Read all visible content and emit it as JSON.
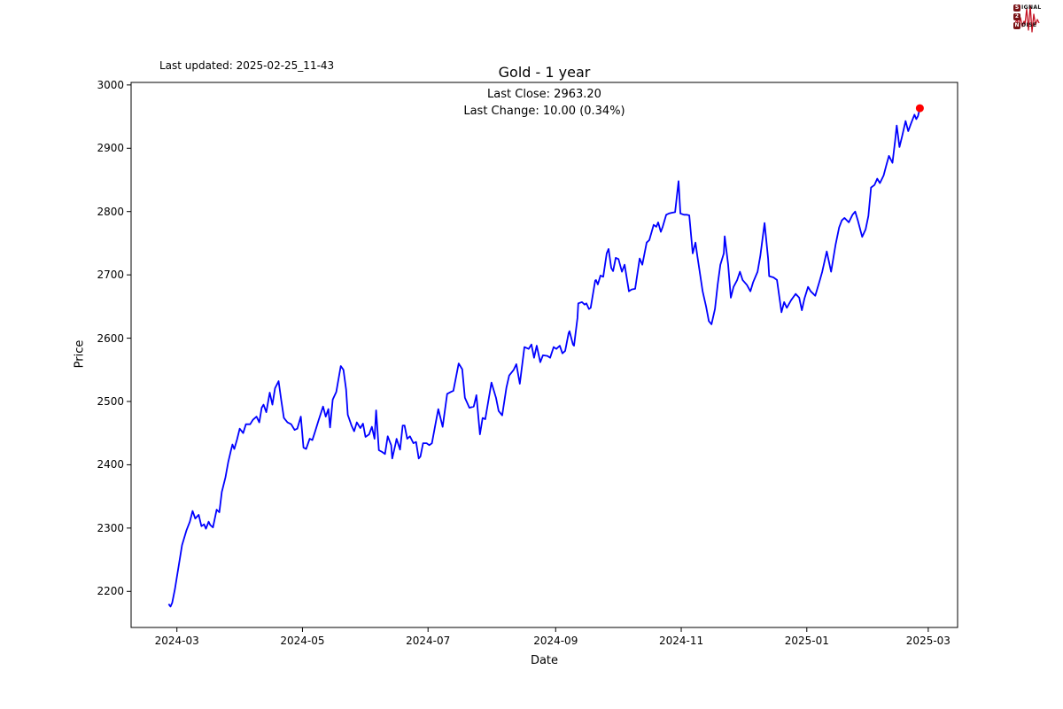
{
  "header": {
    "last_updated": "Last updated: 2025-02-25_11-43",
    "title": "Gold - 1 year",
    "subtitle_line1": "Last Close: 2963.20",
    "subtitle_line2": "Last Change: 10.00 (0.34%)"
  },
  "logo": {
    "wave_color": "#c41425",
    "badge_color": "#7a1417",
    "rows": [
      {
        "badge": "S",
        "rest": "IGNAL"
      },
      {
        "badge": "2",
        "rest": ""
      },
      {
        "badge": "N",
        "rest": "OISE"
      }
    ]
  },
  "chart_data": {
    "type": "line",
    "title": "Gold - 1 year",
    "xlabel": "Date",
    "ylabel": "Price",
    "legend": null,
    "grid": false,
    "line_color": "#0000ff",
    "last_point_color": "#ff0000",
    "axis_color": "#000000",
    "last_close": 2963.2,
    "last_change": "10.00 (0.34%)",
    "x_unit": "days since 2024-02-26",
    "x_start_date": "2024-02-26",
    "x_end_date": "2025-02-25",
    "xlim_days": [
      -18.25,
      383.25
    ],
    "ylim": [
      2143,
      3004
    ],
    "y_ticks": [
      2200,
      2300,
      2400,
      2500,
      2600,
      2700,
      2800,
      2900,
      3000
    ],
    "x_ticks": [
      {
        "day": 4,
        "label": "2024-03"
      },
      {
        "day": 65,
        "label": "2024-05"
      },
      {
        "day": 126,
        "label": "2024-07"
      },
      {
        "day": 188,
        "label": "2024-09"
      },
      {
        "day": 249,
        "label": "2024-11"
      },
      {
        "day": 310,
        "label": "2025-01"
      },
      {
        "day": 369,
        "label": "2025-03"
      }
    ],
    "x_days": [
      0,
      0.9,
      1.7,
      3.0,
      4.3,
      5.2,
      6.5,
      8.6,
      10.3,
      11.6,
      12.9,
      14.6,
      15.9,
      17.2,
      18.1,
      19.4,
      20.2,
      21.5,
      23.3,
      24.6,
      25.8,
      27.6,
      28.9,
      30.2,
      31.0,
      31.9,
      33.2,
      34.5,
      36.2,
      37.5,
      39.6,
      40.9,
      42.7,
      44.0,
      45.2,
      46.1,
      47.4,
      49.1,
      50.4,
      51.7,
      53.4,
      54.7,
      56.0,
      57.7,
      59.5,
      61.2,
      62.5,
      64.2,
      65.5,
      66.8,
      68.5,
      69.8,
      71.1,
      72.8,
      75.0,
      76.3,
      77.6,
      78.4,
      79.7,
      81.4,
      83.6,
      84.9,
      86.2,
      87.0,
      88.8,
      90.1,
      91.4,
      93.1,
      94.4,
      95.6,
      97.4,
      98.7,
      100.0,
      100.8,
      102.1,
      103.8,
      105.1,
      106.4,
      108.1,
      108.6,
      110.3,
      110.7,
      112.4,
      113.7,
      114.6,
      115.9,
      117.2,
      118.9,
      120.2,
      121.5,
      122.3,
      123.6,
      125.3,
      126.6,
      127.9,
      129.7,
      131.0,
      133.1,
      135.3,
      137.0,
      138.3,
      140.9,
      142.6,
      143.9,
      146.1,
      148.2,
      149.5,
      151.2,
      152.5,
      153.8,
      156.8,
      159.0,
      160.3,
      162.0,
      164.1,
      165.4,
      167.6,
      168.9,
      170.6,
      172.8,
      174.9,
      176.2,
      177.5,
      178.8,
      180.5,
      181.8,
      184.0,
      185.3,
      187.0,
      188.3,
      190.0,
      191.3,
      192.6,
      194.3,
      194.7,
      196.4,
      196.9,
      198.6,
      199.0,
      200.8,
      202.1,
      202.9,
      204.2,
      205.0,
      207.2,
      207.6,
      208.5,
      209.8,
      211.1,
      212.8,
      213.7,
      215.0,
      215.9,
      217.2,
      218.5,
      220.2,
      221.5,
      223.6,
      224.9,
      226.6,
      228.8,
      230.1,
      232.2,
      233.5,
      235.6,
      236.9,
      237.8,
      239.1,
      240.0,
      241.7,
      243.0,
      244.3,
      246.0,
      247.7,
      248.6,
      250.3,
      251.6,
      252.9,
      254.6,
      255.9,
      256.8,
      258.1,
      259.4,
      261.1,
      262.4,
      263.7,
      265.4,
      266.7,
      268.0,
      269.7,
      270.1,
      271.8,
      273.1,
      274.4,
      276.2,
      277.5,
      278.8,
      280.9,
      282.6,
      283.9,
      286.1,
      287.4,
      289.5,
      291.2,
      291.7,
      293.8,
      295.5,
      297.7,
      299.0,
      300.3,
      302.4,
      304.6,
      306.3,
      307.6,
      308.9,
      310.6,
      311.9,
      314.1,
      316.2,
      317.5,
      319.7,
      321.8,
      324.0,
      325.7,
      327.0,
      328.3,
      330.4,
      332.2,
      333.5,
      334.8,
      336.9,
      338.6,
      339.9,
      341.2,
      342.9,
      344.2,
      345.5,
      347.3,
      348.6,
      349.9,
      351.6,
      352.9,
      353.7,
      355.0,
      356.3,
      358.0,
      359.3,
      360.6,
      362.3,
      363.2,
      364.0,
      364.9
    ],
    "prices": [
      2180,
      2176,
      2182,
      2203,
      2229,
      2247,
      2273,
      2296,
      2310,
      2327,
      2315,
      2321,
      2303,
      2306,
      2299,
      2310,
      2305,
      2301,
      2329,
      2325,
      2357,
      2380,
      2404,
      2422,
      2432,
      2425,
      2440,
      2457,
      2450,
      2464,
      2464,
      2471,
      2476,
      2467,
      2490,
      2495,
      2483,
      2514,
      2495,
      2521,
      2532,
      2502,
      2474,
      2467,
      2464,
      2455,
      2457,
      2476,
      2427,
      2425,
      2441,
      2439,
      2452,
      2470,
      2492,
      2476,
      2488,
      2459,
      2503,
      2515,
      2556,
      2550,
      2519,
      2479,
      2462,
      2453,
      2467,
      2458,
      2465,
      2444,
      2448,
      2460,
      2441,
      2486,
      2423,
      2420,
      2417,
      2445,
      2431,
      2410,
      2434,
      2441,
      2424,
      2462,
      2462,
      2441,
      2445,
      2434,
      2436,
      2410,
      2413,
      2434,
      2434,
      2431,
      2434,
      2466,
      2488,
      2460,
      2512,
      2515,
      2517,
      2560,
      2551,
      2506,
      2490,
      2492,
      2510,
      2448,
      2474,
      2472,
      2530,
      2506,
      2485,
      2478,
      2522,
      2541,
      2550,
      2559,
      2528,
      2586,
      2583,
      2590,
      2569,
      2588,
      2562,
      2573,
      2572,
      2569,
      2586,
      2583,
      2588,
      2576,
      2580,
      2608,
      2611,
      2590,
      2588,
      2632,
      2655,
      2657,
      2653,
      2655,
      2646,
      2648,
      2691,
      2692,
      2685,
      2699,
      2697,
      2734,
      2741,
      2711,
      2706,
      2727,
      2725,
      2705,
      2716,
      2674,
      2677,
      2678,
      2726,
      2716,
      2751,
      2755,
      2779,
      2776,
      2783,
      2768,
      2776,
      2795,
      2797,
      2798,
      2799,
      2848,
      2797,
      2795,
      2795,
      2794,
      2734,
      2751,
      2730,
      2702,
      2674,
      2650,
      2627,
      2622,
      2646,
      2685,
      2716,
      2734,
      2761,
      2716,
      2664,
      2681,
      2692,
      2705,
      2692,
      2684,
      2674,
      2688,
      2705,
      2730,
      2782,
      2726,
      2698,
      2696,
      2692,
      2641,
      2657,
      2648,
      2660,
      2670,
      2664,
      2644,
      2663,
      2681,
      2674,
      2667,
      2690,
      2705,
      2737,
      2705,
      2748,
      2775,
      2786,
      2790,
      2783,
      2795,
      2800,
      2786,
      2760,
      2772,
      2793,
      2838,
      2842,
      2852,
      2845,
      2857,
      2873,
      2888,
      2877,
      2912,
      2936,
      2902,
      2919,
      2943,
      2927,
      2939,
      2953,
      2946,
      2951,
      2963.2
    ]
  }
}
